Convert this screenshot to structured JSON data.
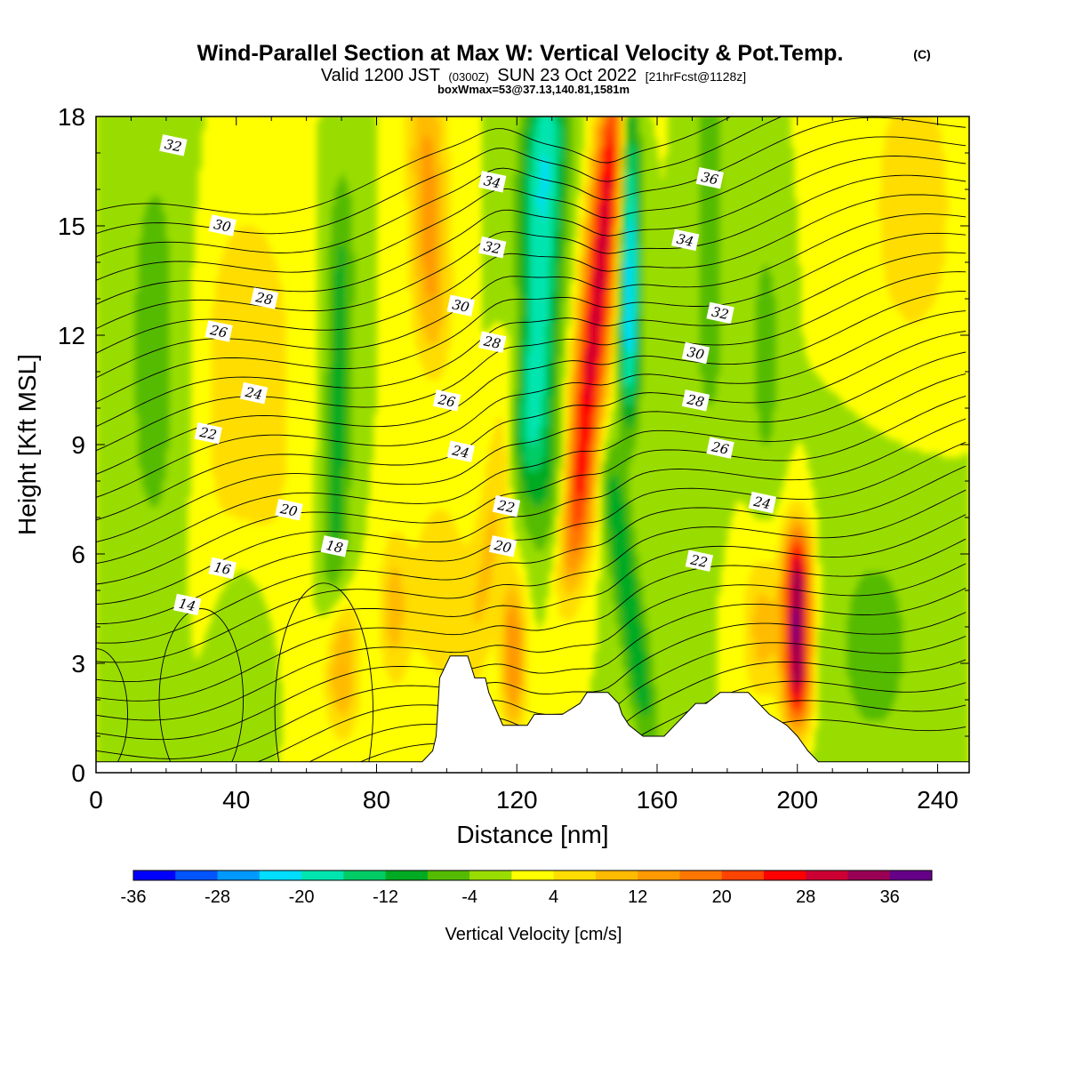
{
  "header": {
    "title": "Wind-Parallel Section at Max W: Vertical Velocity & Pot.Temp.",
    "copyright": "(C)",
    "valid_prefix": "Valid 1200 JST",
    "valid_z": "(0300Z)",
    "valid_date": "SUN 23 Oct 2022",
    "forecast": "[21hrFcst@1128z]",
    "box_info": "boxWmax=53@37.13,140.81,1581m"
  },
  "chart_data": {
    "type": "heatmap",
    "xlabel": "Distance [nm]",
    "ylabel": "Height [Kft MSL]",
    "xlim": [
      0,
      249
    ],
    "ylim": [
      0,
      18
    ],
    "x_ticks": [
      "0",
      "40",
      "80",
      "120",
      "160",
      "200",
      "240"
    ],
    "y_ticks": [
      "0",
      "3",
      "6",
      "9",
      "12",
      "15",
      "18"
    ],
    "fill_variable": "Vertical Velocity [cm/s]",
    "colorbar": {
      "label": "Vertical Velocity [cm/s]",
      "levels": [
        -36,
        -32,
        -28,
        -24,
        -20,
        -16,
        -12,
        -8,
        -4,
        0,
        4,
        8,
        12,
        16,
        20,
        24,
        28,
        32,
        36,
        40
      ],
      "tick_labels": [
        "-36",
        "-28",
        "-20",
        "-12",
        "-4",
        "4",
        "12",
        "20",
        "28",
        "36"
      ],
      "colors": [
        "#0000ff",
        "#0055ff",
        "#0099ff",
        "#00ddff",
        "#00e5b0",
        "#00cc66",
        "#00aa22",
        "#55bb00",
        "#99dd00",
        "#ffff00",
        "#ffdd00",
        "#ffbb00",
        "#ff9900",
        "#ff7700",
        "#ff4400",
        "#ff0000",
        "#cc0033",
        "#990055",
        "#660088"
      ]
    },
    "features": [
      {
        "kind": "updraft",
        "x": 95,
        "z": [
          12,
          18
        ],
        "peak": 14
      },
      {
        "kind": "downdraft",
        "x": 69,
        "z": [
          4,
          16
        ],
        "peak": -10
      },
      {
        "kind": "downdraft",
        "x": 125,
        "z": [
          8,
          18
        ],
        "peak": -22
      },
      {
        "kind": "updraft",
        "x": 142,
        "z": [
          6,
          18
        ],
        "peak": 30
      },
      {
        "kind": "downdraft",
        "x": 152,
        "z": [
          10,
          18
        ],
        "peak": -24
      },
      {
        "kind": "downdraft",
        "x": 153,
        "z": [
          1,
          9
        ],
        "peak": -12
      },
      {
        "kind": "updraft",
        "x": 200,
        "z": [
          2,
          6
        ],
        "peak": 38
      },
      {
        "kind": "updraft",
        "x": 70,
        "z": [
          2,
          4
        ],
        "peak": 16
      },
      {
        "kind": "updraft",
        "x": 119,
        "z": [
          2,
          5
        ],
        "peak": 18
      }
    ],
    "terrain_profile": {
      "x": [
        0,
        93,
        96,
        97,
        98,
        101,
        104,
        106,
        107,
        108,
        111,
        112,
        116,
        120,
        123,
        125,
        129,
        133,
        138,
        140,
        143,
        146,
        149,
        150,
        152,
        156,
        159,
        162,
        165,
        168,
        171,
        174,
        178,
        186,
        192,
        197,
        200,
        203,
        206,
        249
      ],
      "z": [
        0.3,
        0.3,
        0.6,
        1.0,
        2.6,
        3.2,
        3.2,
        3.2,
        2.9,
        2.6,
        2.6,
        2.2,
        1.3,
        1.3,
        1.3,
        1.6,
        1.6,
        1.6,
        1.9,
        2.2,
        2.2,
        2.2,
        1.9,
        1.6,
        1.3,
        1.0,
        1.0,
        1.0,
        1.3,
        1.6,
        1.9,
        1.9,
        2.2,
        2.2,
        1.6,
        1.3,
        1.0,
        0.6,
        0.3,
        0.3
      ]
    },
    "contour_variable": "Potential Temperature",
    "contour_labels": [
      {
        "value": "14",
        "x": 26,
        "z": 4.6
      },
      {
        "value": "16",
        "x": 36,
        "z": 5.6
      },
      {
        "value": "18",
        "x": 68,
        "z": 6.2
      },
      {
        "value": "20",
        "x": 55,
        "z": 7.2
      },
      {
        "value": "20",
        "x": 116,
        "z": 6.2
      },
      {
        "value": "22",
        "x": 32,
        "z": 9.3
      },
      {
        "value": "22",
        "x": 117,
        "z": 7.3
      },
      {
        "value": "22",
        "x": 172,
        "z": 5.8
      },
      {
        "value": "24",
        "x": 45,
        "z": 10.4
      },
      {
        "value": "24",
        "x": 104,
        "z": 8.8
      },
      {
        "value": "24",
        "x": 190,
        "z": 7.4
      },
      {
        "value": "26",
        "x": 35,
        "z": 12.1
      },
      {
        "value": "26",
        "x": 100,
        "z": 10.2
      },
      {
        "value": "26",
        "x": 178,
        "z": 8.9
      },
      {
        "value": "28",
        "x": 48,
        "z": 13.0
      },
      {
        "value": "28",
        "x": 113,
        "z": 11.8
      },
      {
        "value": "28",
        "x": 171,
        "z": 10.2
      },
      {
        "value": "30",
        "x": 36,
        "z": 15.0
      },
      {
        "value": "30",
        "x": 104,
        "z": 12.8
      },
      {
        "value": "30",
        "x": 171,
        "z": 11.5
      },
      {
        "value": "32",
        "x": 22,
        "z": 17.2
      },
      {
        "value": "32",
        "x": 113,
        "z": 14.4
      },
      {
        "value": "32",
        "x": 178,
        "z": 12.6
      },
      {
        "value": "34",
        "x": 113,
        "z": 16.2
      },
      {
        "value": "34",
        "x": 168,
        "z": 14.6
      },
      {
        "value": "36",
        "x": 175,
        "z": 16.3
      }
    ]
  }
}
